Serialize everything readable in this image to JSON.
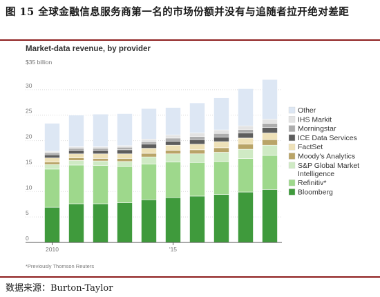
{
  "figure": {
    "title": "图 15 全球金融信息服务商第一名的市场份额并没有与追随者拉开绝对差距",
    "source": "数据来源：Burton-Taylor"
  },
  "chart_data": {
    "type": "bar",
    "stacked": true,
    "title": "Market-data revenue, by provider",
    "ytop_label": "$35 billion",
    "ylim": [
      0,
      35
    ],
    "yticks": [
      0,
      5,
      10,
      15,
      20,
      25,
      30
    ],
    "x": [
      2010,
      2011,
      2012,
      2013,
      2014,
      2015,
      2016,
      2017,
      2018,
      2019
    ],
    "xtick_labels": [
      {
        "year": 2010,
        "label": "2010"
      },
      {
        "year": 2015,
        "label": "'15"
      }
    ],
    "legend_position": "right",
    "grid": true,
    "footnote": "*Previously Thomson Reuters",
    "series": [
      {
        "name": "Bloomberg",
        "color": "#3f9a3c",
        "values": [
          6.9,
          7.6,
          7.6,
          7.8,
          8.4,
          8.8,
          9.1,
          9.4,
          9.9,
          10.4
        ]
      },
      {
        "name": "Refinitiv*",
        "color": "#9ed88c",
        "values": [
          7.5,
          7.6,
          7.5,
          7.1,
          7.0,
          7.0,
          6.6,
          6.5,
          6.6,
          6.7
        ]
      },
      {
        "name": "S&P Global Market Intelligence",
        "color": "#cfeac4",
        "values": [
          0.9,
          0.9,
          0.9,
          1.0,
          1.4,
          1.6,
          1.7,
          1.8,
          1.8,
          2.0
        ]
      },
      {
        "name": "Moody's Analytics",
        "color": "#b9a468",
        "values": [
          0.5,
          0.5,
          0.5,
          0.6,
          0.7,
          0.7,
          0.8,
          0.9,
          1.0,
          1.1
        ]
      },
      {
        "name": "FactSet",
        "color": "#eee1b8",
        "values": [
          0.8,
          0.8,
          0.9,
          0.9,
          1.0,
          1.0,
          1.1,
          1.2,
          1.2,
          1.3
        ]
      },
      {
        "name": "ICE Data Services",
        "color": "#5d5d5d",
        "values": [
          0.6,
          0.7,
          0.7,
          0.8,
          0.8,
          0.8,
          0.9,
          0.9,
          1.0,
          1.1
        ]
      },
      {
        "name": "Morningstar",
        "color": "#adadad",
        "values": [
          0.4,
          0.4,
          0.4,
          0.5,
          0.5,
          0.6,
          0.6,
          0.7,
          0.7,
          0.8
        ]
      },
      {
        "name": "IHS Markit",
        "color": "#e3e3e3",
        "values": [
          0.3,
          0.3,
          0.3,
          0.3,
          0.5,
          0.6,
          0.7,
          0.7,
          0.7,
          0.8
        ]
      },
      {
        "name": "Other",
        "color": "#dde7f4",
        "values": [
          5.5,
          6.2,
          6.4,
          6.3,
          6.0,
          5.4,
          5.9,
          6.3,
          7.3,
          7.8
        ]
      }
    ]
  }
}
